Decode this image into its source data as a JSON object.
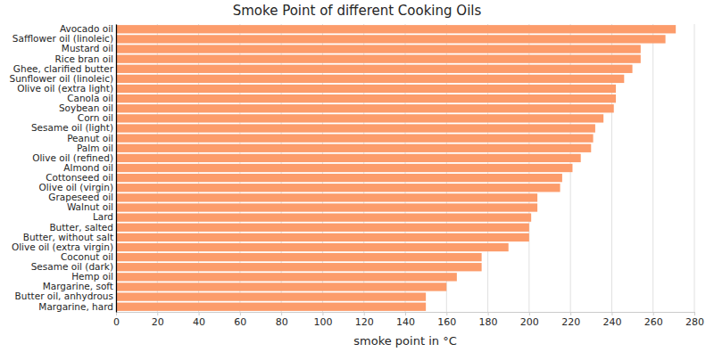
{
  "chart_data": {
    "type": "bar",
    "orientation": "horizontal",
    "title": "Smoke Point of different Cooking Oils",
    "x_label": "smoke point in °C",
    "categories": [
      "Avocado oil",
      "Safflower oil (linoleic)",
      "Mustard oil",
      "Rice bran oil",
      "Ghee, clarified butter",
      "Sunflower oil (linoleic)",
      "Olive oil (extra light)",
      "Canola oil",
      "Soybean oil",
      "Corn oil",
      "Sesame oil (light)",
      "Peanut oil",
      "Palm oil",
      "Olive oil (refined)",
      "Almond oil",
      "Cottonseed oil",
      "Olive oil (virgin)",
      "Grapeseed oil",
      "Walnut oil",
      "Lard",
      "Butter, salted",
      "Butter, without salt",
      "Olive oil (extra virgin)",
      "Coconut oil",
      "Sesame oil (dark)",
      "Hemp oil",
      "Margarine, soft",
      "Butter oil, anhydrous",
      "Margarine, hard"
    ],
    "values": [
      271,
      266,
      254,
      254,
      250,
      246,
      242,
      242,
      241,
      236,
      232,
      231,
      230,
      225,
      221,
      216,
      215,
      204,
      204,
      201,
      200,
      200,
      190,
      177,
      177,
      165,
      160,
      150,
      150
    ],
    "color": "#fc9c6b",
    "xlim": [
      0,
      280
    ],
    "xticks": [
      0,
      20,
      40,
      60,
      80,
      100,
      120,
      140,
      160,
      180,
      200,
      220,
      240,
      260,
      280
    ],
    "grid": true
  }
}
